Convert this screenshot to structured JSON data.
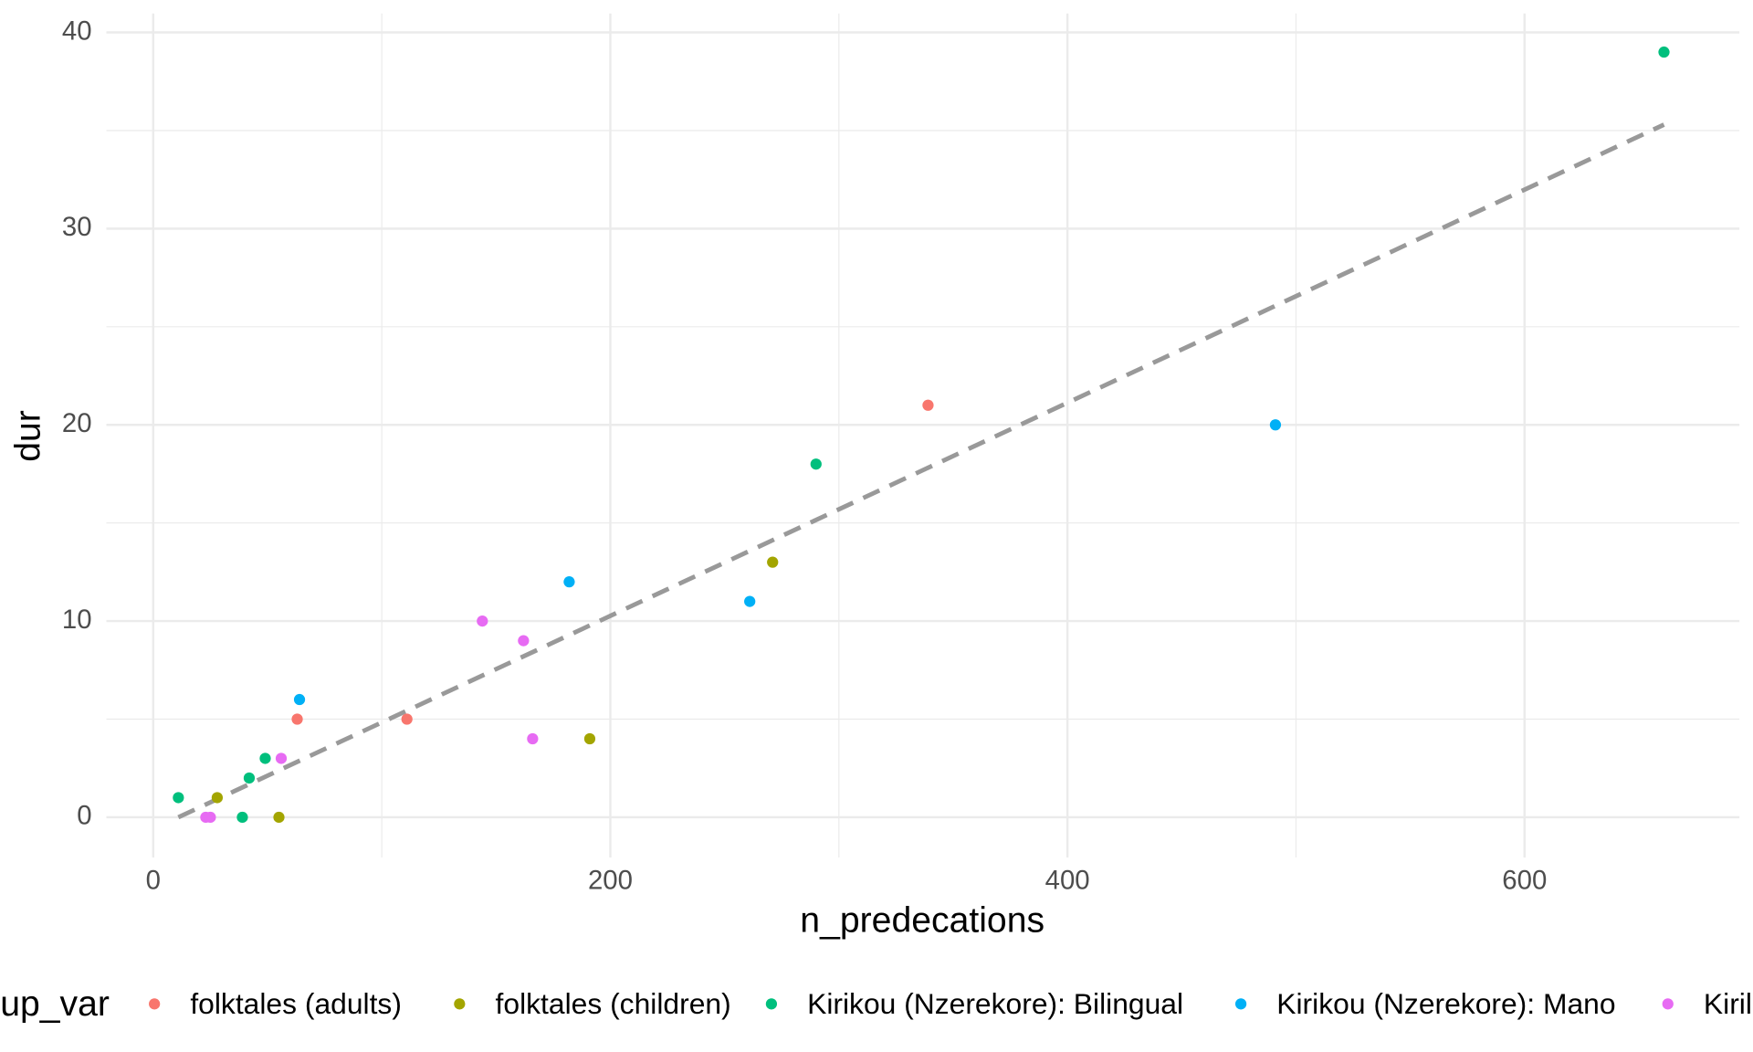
{
  "chart_data": {
    "type": "scatter",
    "x_label": "n_predecations",
    "y_label": "dur",
    "legend_title": "up_var",
    "legend_position": "bottom",
    "grid": true,
    "xlim": [
      -20.5,
      694
    ],
    "ylim": [
      -2.05,
      40.97
    ],
    "xticks": [
      0,
      200,
      400,
      600
    ],
    "yticks": [
      0,
      10,
      20,
      30,
      40
    ],
    "x_minor_ticks": [
      100,
      300,
      500
    ],
    "y_minor_ticks": [
      5,
      15,
      25,
      35
    ],
    "series": [
      {
        "name": "folktales (adults)",
        "color": "#F8766D",
        "x": [
          63,
          111,
          339
        ],
        "values": [
          5,
          5,
          21
        ]
      },
      {
        "name": "folktales (children)",
        "color": "#A3A500",
        "x": [
          28,
          55,
          191,
          271
        ],
        "values": [
          1,
          0,
          4,
          13
        ]
      },
      {
        "name": "Kirikou (Nzerekore): Bilingual",
        "color": "#00BF7D",
        "x": [
          11,
          39,
          42,
          49,
          290,
          661
        ],
        "values": [
          1,
          0,
          2,
          3,
          18,
          39
        ]
      },
      {
        "name": "Kirikou (Nzerekore): Mano",
        "color": "#00B0F6",
        "x": [
          64,
          182,
          261,
          491
        ],
        "values": [
          6,
          12,
          11,
          20
        ]
      },
      {
        "name": "Kiril",
        "color": "#E76BF3",
        "x": [
          23,
          25,
          56,
          144,
          162,
          166
        ],
        "values": [
          0,
          0,
          3,
          10,
          9,
          4
        ]
      }
    ],
    "trend_line": {
      "color": "#999999",
      "x": [
        11,
        661
      ],
      "values": [
        0,
        35.3
      ]
    }
  }
}
